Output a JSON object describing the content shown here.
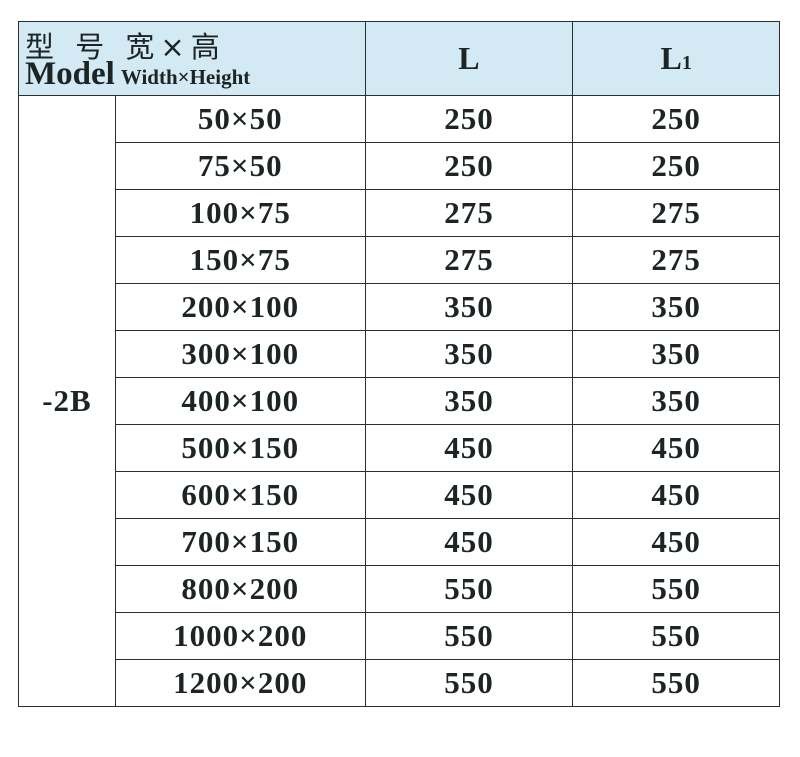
{
  "header": {
    "model_cn": "型 号 宽×高",
    "model_en": "Model",
    "size_en": "Width×Height",
    "col_L": "L",
    "col_L1_main": "L",
    "col_L1_sub": "1"
  },
  "colors": {
    "header_bg": "#d3eaf4",
    "text": "#1c2424"
  },
  "model": "-2B",
  "rows": [
    {
      "size": "50×50",
      "L": "250",
      "L1": "250"
    },
    {
      "size": "75×50",
      "L": "250",
      "L1": "250"
    },
    {
      "size": "100×75",
      "L": "275",
      "L1": "275"
    },
    {
      "size": "150×75",
      "L": "275",
      "L1": "275"
    },
    {
      "size": "200×100",
      "L": "350",
      "L1": "350"
    },
    {
      "size": "300×100",
      "L": "350",
      "L1": "350"
    },
    {
      "size": "400×100",
      "L": "350",
      "L1": "350"
    },
    {
      "size": "500×150",
      "L": "450",
      "L1": "450"
    },
    {
      "size": "600×150",
      "L": "450",
      "L1": "450"
    },
    {
      "size": "700×150",
      "L": "450",
      "L1": "450"
    },
    {
      "size": "800×200",
      "L": "550",
      "L1": "550"
    },
    {
      "size": "1000×200",
      "L": "550",
      "L1": "550"
    },
    {
      "size": "1200×200",
      "L": "550",
      "L1": "550"
    }
  ]
}
